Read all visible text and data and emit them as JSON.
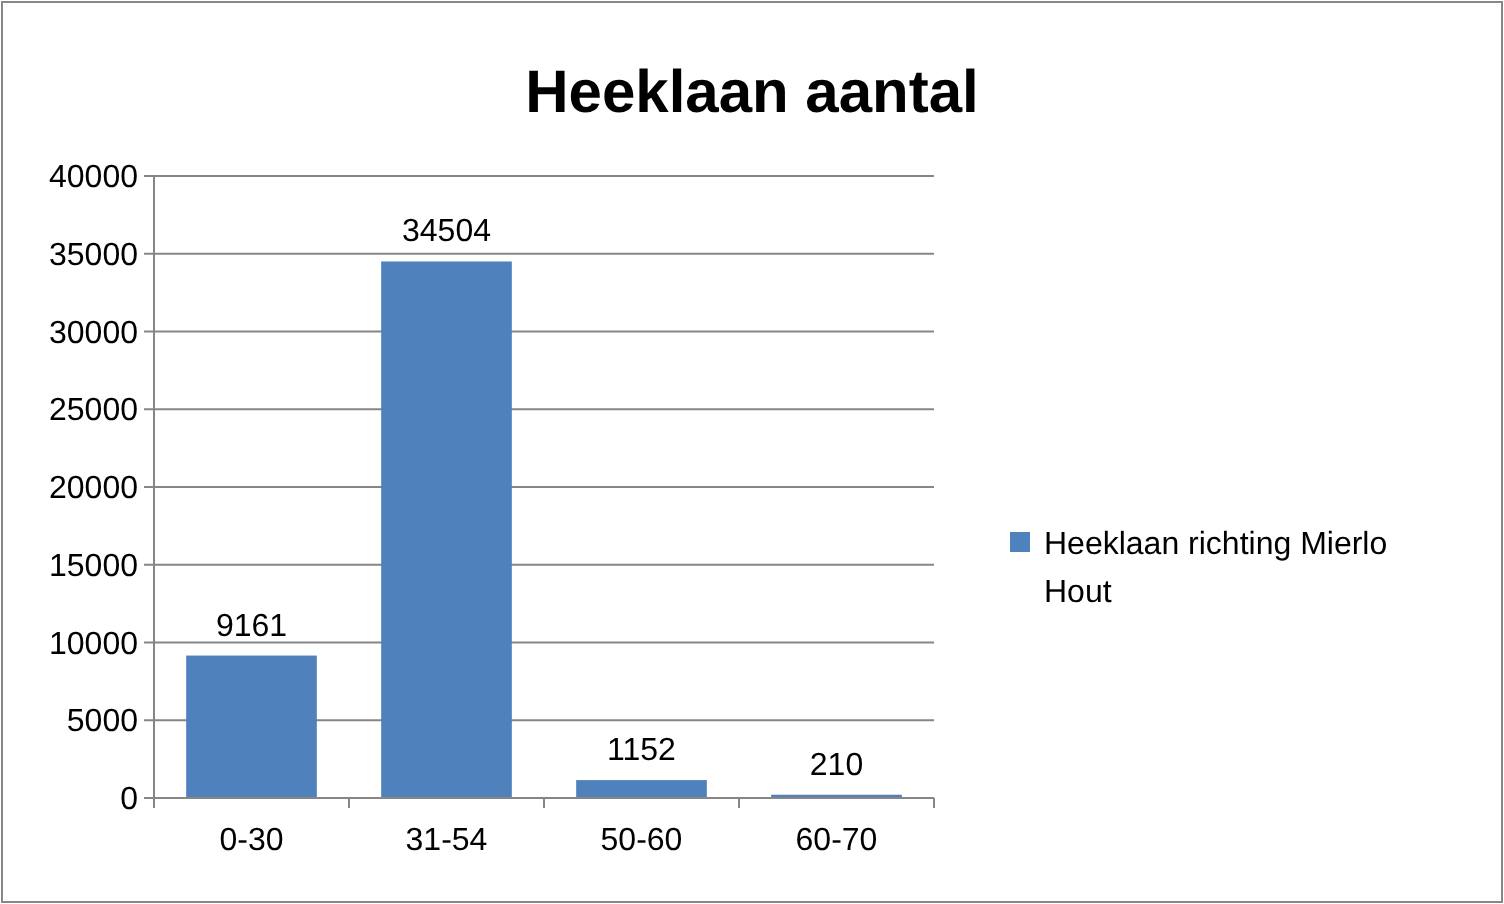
{
  "chart_data": {
    "type": "bar",
    "title": "Heeklaan aantal",
    "categories": [
      "0-30",
      "31-54",
      "50-60",
      "60-70"
    ],
    "series": [
      {
        "name": "Heeklaan richting Mierlo Hout",
        "color": "#4f81bd",
        "values": [
          9161,
          34504,
          1152,
          210
        ]
      }
    ],
    "ylim": [
      0,
      40000
    ],
    "yticks": [
      0,
      5000,
      10000,
      15000,
      20000,
      25000,
      30000,
      35000,
      40000
    ],
    "grid": "y",
    "legend": "right",
    "data_labels": true
  }
}
